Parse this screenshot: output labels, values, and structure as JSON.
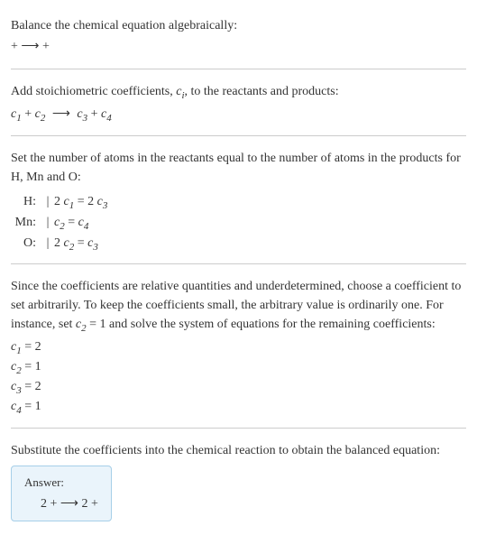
{
  "intro": {
    "line1": "Balance the chemical equation algebraically:",
    "line2": " +  ⟶  + "
  },
  "stoich": {
    "line1": "Add stoichiometric coefficients, ",
    "ci": "c",
    "ci_sub": "i",
    "line1b": ", to the reactants and products:",
    "eq_c1": "c",
    "eq_c1_sub": "1",
    "plus1": "  + ",
    "eq_c2": "c",
    "eq_c2_sub": "2",
    "arrow": "  ⟶ ",
    "eq_c3": "c",
    "eq_c3_sub": "3",
    "plus2": "  + ",
    "eq_c4": "c",
    "eq_c4_sub": "4"
  },
  "atoms": {
    "intro": "Set the number of atoms in the reactants equal to the number of atoms in the products for H, Mn and O:",
    "rows": {
      "h_label": "H:",
      "h_lhs_coef": "2 ",
      "h_lhs_var": "c",
      "h_lhs_sub": "1",
      "h_eq": " = ",
      "h_rhs_coef": "2 ",
      "h_rhs_var": "c",
      "h_rhs_sub": "3",
      "mn_label": "Mn:",
      "mn_lhs_var": "c",
      "mn_lhs_sub": "2",
      "mn_eq": " = ",
      "mn_rhs_var": "c",
      "mn_rhs_sub": "4",
      "o_label": "O:",
      "o_lhs_coef": "2 ",
      "o_lhs_var": "c",
      "o_lhs_sub": "2",
      "o_eq": " = ",
      "o_rhs_var": "c",
      "o_rhs_sub": "3"
    }
  },
  "choose": {
    "text": "Since the coefficients are relative quantities and underdetermined, choose a coefficient to set arbitrarily. To keep the coefficients small, the arbitrary value is ordinarily one. For instance, set ",
    "cvar": "c",
    "csub": "2",
    "text2": " = 1 and solve the system of equations for the remaining coefficients:",
    "r1_var": "c",
    "r1_sub": "1",
    "r1_val": " = 2",
    "r2_var": "c",
    "r2_sub": "2",
    "r2_val": " = 1",
    "r3_var": "c",
    "r3_sub": "3",
    "r3_val": " = 2",
    "r4_var": "c",
    "r4_sub": "4",
    "r4_val": " = 1"
  },
  "final": {
    "intro": "Substitute the coefficients into the chemical reaction to obtain the balanced equation:",
    "answer_label": "Answer:",
    "answer_eq": "2  +  ⟶ 2  + "
  }
}
